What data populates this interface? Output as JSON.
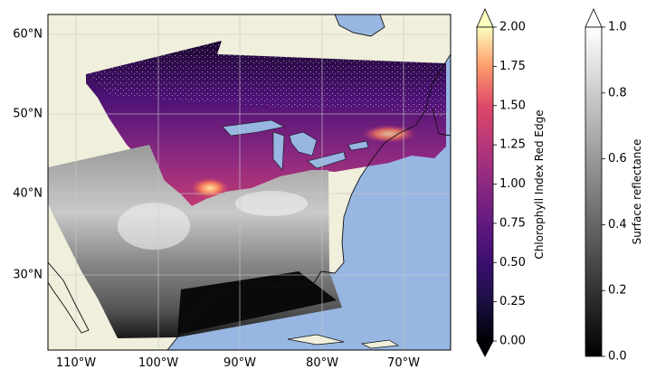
{
  "map": {
    "lat_labels": [
      "60°N",
      "50°N",
      "40°N",
      "30°N"
    ],
    "lon_labels": [
      "110°W",
      "100°W",
      "90°W",
      "80°W",
      "70°W"
    ],
    "land_color": "#efefdc",
    "ocean_color": "#97b6e1"
  },
  "colorbars": [
    {
      "label": "Chlorophyll Index Red Edge",
      "ticks": [
        "0.00",
        "0.25",
        "0.50",
        "0.75",
        "1.00",
        "1.25",
        "1.50",
        "1.75",
        "2.00"
      ],
      "min": 0,
      "max": 2,
      "extend": "both",
      "colormap": "magma"
    },
    {
      "label": "Surface reflectance",
      "ticks": [
        "0.0",
        "0.2",
        "0.4",
        "0.6",
        "0.8",
        "1.0"
      ],
      "min": 0,
      "max": 1,
      "extend": "max",
      "colormap": "gray"
    }
  ]
}
